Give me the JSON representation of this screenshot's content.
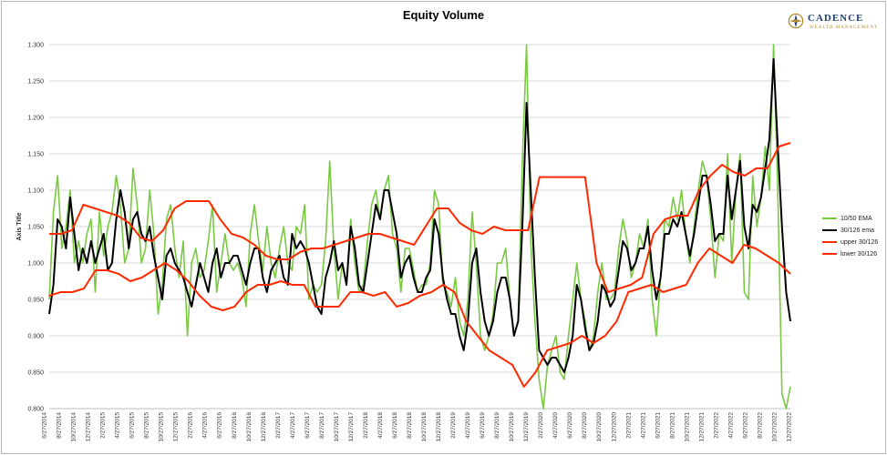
{
  "logo": {
    "name": "CADENCE",
    "tagline": "WEALTH MANAGEMENT"
  },
  "chart_data": {
    "type": "line",
    "title": "Equity Volume",
    "xlabel": "",
    "ylabel": "Axis Title",
    "ylim": [
      0.8,
      1.3
    ],
    "yticks": [
      "0.800",
      "0.850",
      "0.900",
      "0.950",
      "1.000",
      "1.050",
      "1.100",
      "1.150",
      "1.200",
      "1.250",
      "1.300"
    ],
    "grid": true,
    "legend_position": "right",
    "x_tick_labels": [
      "6/27/2014",
      "8/27/2014",
      "10/27/2014",
      "12/27/2014",
      "2/27/2015",
      "4/27/2015",
      "6/27/2015",
      "8/27/2015",
      "10/27/2015",
      "12/27/2015",
      "2/27/2016",
      "4/27/2016",
      "6/27/2016",
      "8/27/2016",
      "10/27/2016",
      "12/27/2016",
      "2/27/2017",
      "4/27/2017",
      "6/27/2017",
      "8/27/2017",
      "10/27/2017",
      "12/27/2017",
      "2/27/2018",
      "4/27/2018",
      "6/27/2018",
      "8/27/2018",
      "10/27/2018",
      "12/27/2018",
      "2/27/2019",
      "4/27/2019",
      "6/27/2019",
      "8/27/2019",
      "10/27/2019",
      "12/27/2019",
      "2/27/2020",
      "4/27/2020",
      "6/27/2020",
      "8/27/2020",
      "10/27/2020",
      "12/27/2020",
      "2/27/2021",
      "4/27/2021",
      "6/27/2021",
      "8/27/2021",
      "10/27/2021",
      "12/27/2021",
      "2/27/2022",
      "4/27/2022",
      "6/27/2022",
      "8/27/2022",
      "10/27/2022",
      "12/27/2022"
    ],
    "series": [
      {
        "name": "10/50 EMA",
        "color": "#7ac943",
        "width": 1.6,
        "values": [
          0.95,
          1.07,
          1.12,
          1.02,
          1.05,
          1.1,
          1.0,
          1.03,
          1.0,
          1.04,
          1.06,
          0.96,
          1.07,
          1.01,
          1.05,
          1.07,
          1.12,
          1.08,
          1.0,
          1.02,
          1.13,
          1.08,
          1.0,
          1.02,
          1.1,
          1.04,
          0.93,
          0.97,
          1.06,
          1.08,
          1.02,
          0.98,
          1.03,
          0.9,
          1.0,
          1.02,
          0.98,
          0.99,
          1.03,
          1.08,
          0.96,
          1.0,
          1.04,
          1.0,
          0.99,
          1.0,
          0.98,
          0.94,
          1.04,
          1.08,
          1.03,
          0.99,
          1.05,
          1.0,
          0.98,
          1.02,
          1.05,
          1.0,
          0.99,
          1.05,
          1.04,
          1.08,
          0.95,
          0.97,
          0.96,
          0.97,
          1.03,
          1.14,
          1.02,
          0.95,
          1.0,
          0.97,
          1.06,
          1.0,
          0.96,
          0.97,
          1.03,
          1.08,
          1.1,
          1.06,
          1.1,
          1.12,
          1.04,
          1.02,
          0.96,
          1.02,
          1.02,
          0.99,
          0.96,
          0.97,
          0.97,
          1.0,
          1.1,
          1.08,
          0.97,
          0.96,
          0.94,
          0.98,
          0.92,
          0.9,
          0.95,
          1.07,
          1.0,
          0.9,
          0.88,
          0.9,
          0.93,
          1.0,
          1.0,
          1.02,
          0.95,
          0.9,
          0.92,
          1.14,
          1.35,
          1.03,
          0.92,
          0.84,
          0.8,
          0.86,
          0.88,
          0.9,
          0.85,
          0.84,
          0.9,
          0.95,
          1.0,
          0.95,
          0.92,
          0.88,
          0.9,
          0.96,
          1.0,
          0.95,
          0.95,
          0.96,
          1.02,
          1.06,
          1.03,
          0.98,
          1.0,
          1.04,
          1.02,
          1.06,
          0.95,
          0.9,
          0.98,
          1.06,
          1.05,
          1.09,
          1.06,
          1.1,
          1.04,
          1.0,
          1.05,
          1.1,
          1.14,
          1.12,
          1.06,
          0.98,
          1.04,
          1.03,
          1.15,
          1.0,
          1.1,
          1.15,
          0.96,
          0.95,
          1.12,
          1.05,
          1.09,
          1.16,
          1.1,
          1.3,
          1.1,
          0.82,
          0.8,
          0.83
        ]
      },
      {
        "name": "30/126 ema",
        "color": "#000000",
        "width": 2,
        "values": [
          0.93,
          0.97,
          1.06,
          1.05,
          1.02,
          1.09,
          1.04,
          0.99,
          1.02,
          1.0,
          1.03,
          1.0,
          1.02,
          1.04,
          0.99,
          1.0,
          1.06,
          1.1,
          1.07,
          1.02,
          1.06,
          1.07,
          1.04,
          1.03,
          1.05,
          1.01,
          0.98,
          0.95,
          1.01,
          1.02,
          1.0,
          0.99,
          0.98,
          0.96,
          0.94,
          0.97,
          1.0,
          0.98,
          0.96,
          1.0,
          1.02,
          0.98,
          1.0,
          1.0,
          1.01,
          1.01,
          0.99,
          0.97,
          1.0,
          1.02,
          1.02,
          0.98,
          0.96,
          0.99,
          1.0,
          1.01,
          0.98,
          0.97,
          1.04,
          1.02,
          1.03,
          1.02,
          1.0,
          0.97,
          0.94,
          0.93,
          0.98,
          1.0,
          1.03,
          0.99,
          1.0,
          0.97,
          1.05,
          1.02,
          0.97,
          0.96,
          1.0,
          1.04,
          1.08,
          1.06,
          1.1,
          1.1,
          1.07,
          1.04,
          0.98,
          1.0,
          1.01,
          0.98,
          0.96,
          0.96,
          0.98,
          0.99,
          1.06,
          1.04,
          0.98,
          0.95,
          0.93,
          0.93,
          0.9,
          0.88,
          0.92,
          1.0,
          1.02,
          0.96,
          0.92,
          0.9,
          0.92,
          0.96,
          0.98,
          0.98,
          0.95,
          0.9,
          0.92,
          1.05,
          1.22,
          1.1,
          0.98,
          0.88,
          0.87,
          0.86,
          0.87,
          0.87,
          0.86,
          0.85,
          0.87,
          0.9,
          0.97,
          0.95,
          0.91,
          0.88,
          0.89,
          0.92,
          0.97,
          0.96,
          0.94,
          0.95,
          0.99,
          1.03,
          1.02,
          0.99,
          1.0,
          1.02,
          1.02,
          1.05,
          0.99,
          0.95,
          0.98,
          1.04,
          1.04,
          1.06,
          1.05,
          1.07,
          1.04,
          1.01,
          1.04,
          1.08,
          1.12,
          1.12,
          1.08,
          1.03,
          1.04,
          1.04,
          1.12,
          1.06,
          1.1,
          1.14,
          1.05,
          1.02,
          1.08,
          1.07,
          1.09,
          1.13,
          1.17,
          1.28,
          1.16,
          1.05,
          0.96,
          0.92
        ]
      },
      {
        "name": "upper 30/126",
        "color": "#ff2a00",
        "width": 2,
        "values": [
          1.04,
          1.04,
          1.045,
          1.08,
          1.075,
          1.07,
          1.065,
          1.055,
          1.035,
          1.03,
          1.045,
          1.075,
          1.085,
          1.085,
          1.085,
          1.06,
          1.04,
          1.035,
          1.025,
          1.01,
          1.005,
          1.005,
          1.015,
          1.02,
          1.02,
          1.025,
          1.03,
          1.035,
          1.04,
          1.04,
          1.035,
          1.03,
          1.025,
          1.05,
          1.075,
          1.075,
          1.055,
          1.045,
          1.04,
          1.05,
          1.045,
          1.045,
          1.045,
          1.118,
          1.118,
          1.118,
          1.118,
          1.118,
          1.0,
          0.96,
          0.965,
          0.97,
          0.98,
          1.04,
          1.06,
          1.065,
          1.065,
          1.1,
          1.12,
          1.135,
          1.125,
          1.12,
          1.13,
          1.13,
          1.16,
          1.165
        ]
      },
      {
        "name": "lower 30/126",
        "color": "#ff2a00",
        "width": 2,
        "values": [
          0.955,
          0.96,
          0.96,
          0.965,
          0.99,
          0.99,
          0.985,
          0.975,
          0.98,
          0.99,
          1.0,
          0.99,
          0.975,
          0.955,
          0.94,
          0.935,
          0.94,
          0.96,
          0.97,
          0.97,
          0.975,
          0.97,
          0.97,
          0.94,
          0.94,
          0.94,
          0.96,
          0.96,
          0.955,
          0.96,
          0.94,
          0.945,
          0.955,
          0.96,
          0.97,
          0.96,
          0.92,
          0.9,
          0.88,
          0.87,
          0.86,
          0.83,
          0.85,
          0.88,
          0.885,
          0.89,
          0.9,
          0.89,
          0.9,
          0.92,
          0.96,
          0.965,
          0.97,
          0.96,
          0.965,
          0.97,
          1.0,
          1.02,
          1.01,
          1.0,
          1.025,
          1.02,
          1.01,
          1.0,
          0.985
        ]
      }
    ]
  }
}
